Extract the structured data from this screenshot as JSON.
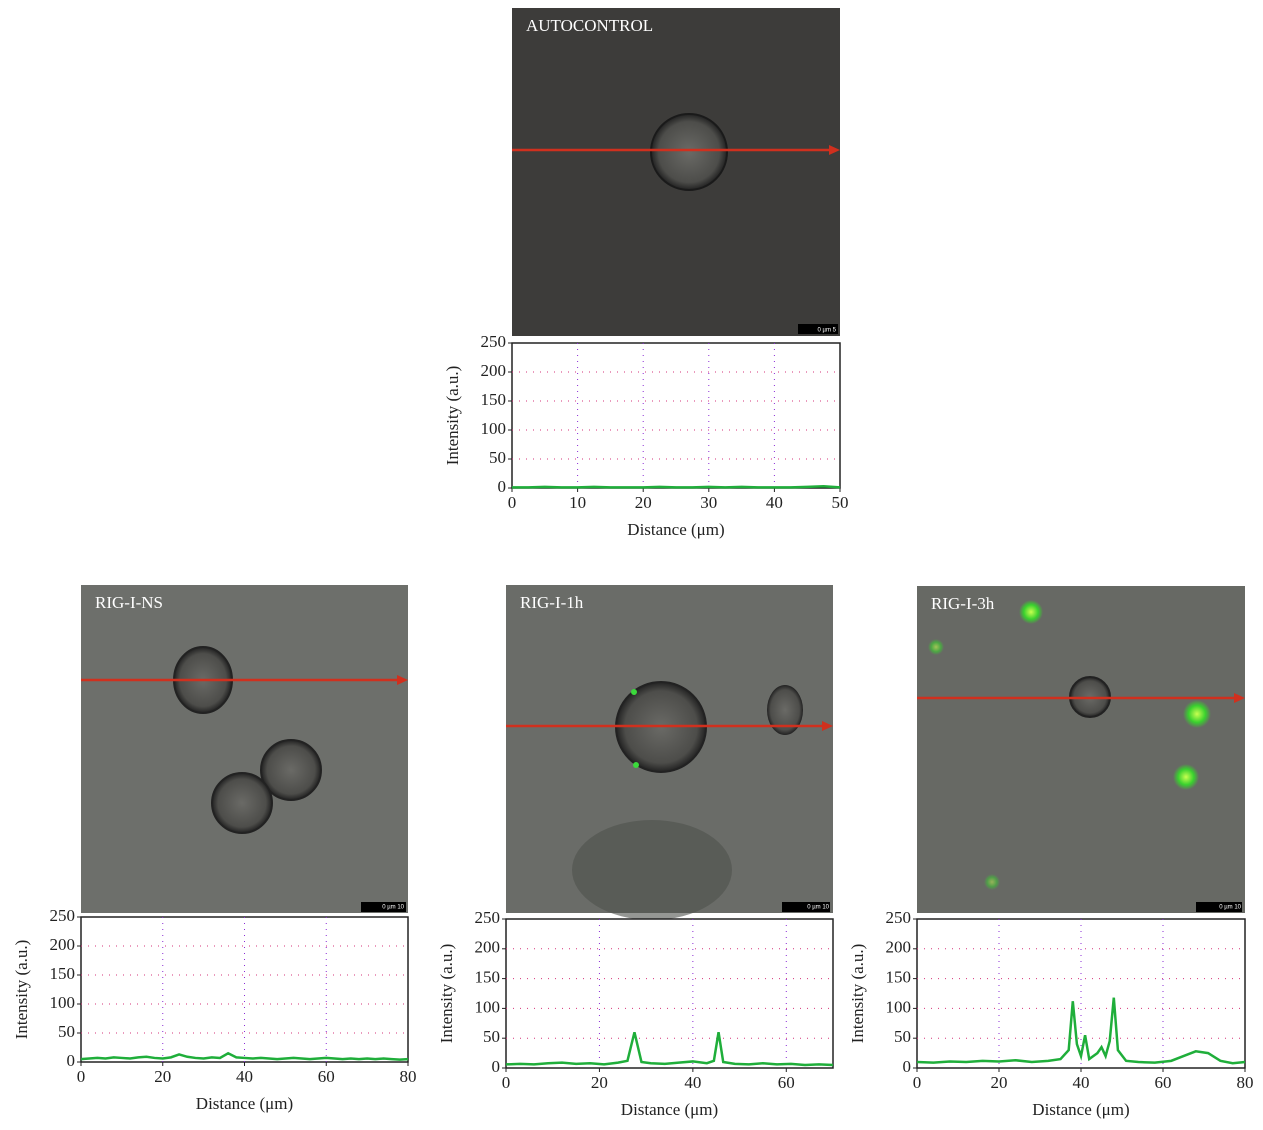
{
  "chart_data": [
    {
      "type": "line",
      "title": "AUTOCONTROL",
      "scale_bar": "0  µm  5",
      "xlabel": "Distance (μm)",
      "ylabel": "Intensity (a.u.)",
      "x": [
        0,
        2.5,
        5,
        7.5,
        10,
        12.5,
        15,
        17.5,
        20,
        22.5,
        25,
        27.5,
        30,
        32.5,
        35,
        37.5,
        40,
        42.5,
        45,
        47.5,
        50
      ],
      "values": [
        1,
        1,
        2,
        1,
        1,
        2,
        1,
        1,
        1,
        2,
        1,
        1,
        2,
        1,
        2,
        1,
        1,
        1,
        2,
        3,
        1
      ],
      "color": "#1fae3a",
      "xlim": [
        0,
        50
      ],
      "ylim": [
        0,
        250
      ],
      "xticks": [
        0,
        10,
        20,
        30,
        40,
        50
      ],
      "yticks": [
        0,
        50,
        100,
        150,
        200,
        250
      ],
      "grid": true
    },
    {
      "type": "line",
      "title": "RIG-I-NS",
      "scale_bar": "0  µm  10",
      "xlabel": "Distance (μm)",
      "ylabel": "Intensity (a.u.)",
      "x": [
        0,
        2,
        4,
        6,
        8,
        10,
        12,
        14,
        16,
        18,
        20,
        22,
        24,
        26,
        28,
        30,
        32,
        34,
        36,
        38,
        40,
        42,
        44,
        46,
        48,
        50,
        52,
        54,
        56,
        58,
        60,
        62,
        64,
        66,
        68,
        70,
        72,
        74,
        76,
        78,
        80
      ],
      "values": [
        5,
        6,
        7,
        6,
        8,
        7,
        6,
        8,
        9,
        7,
        6,
        8,
        13,
        9,
        7,
        6,
        8,
        7,
        15,
        8,
        7,
        6,
        7,
        6,
        5,
        6,
        7,
        6,
        5,
        6,
        7,
        6,
        5,
        6,
        5,
        6,
        5,
        6,
        5,
        4,
        5
      ],
      "color": "#1fae3a",
      "xlim": [
        0,
        80
      ],
      "ylim": [
        0,
        250
      ],
      "xticks": [
        0,
        20,
        40,
        60,
        80
      ],
      "yticks": [
        0,
        50,
        100,
        150,
        200,
        250
      ],
      "grid": true
    },
    {
      "type": "line",
      "title": "RIG-I-1h",
      "scale_bar": "0  µm  10",
      "xlabel": "Distance (μm)",
      "ylabel": "Intensity (a.u.)",
      "x": [
        0,
        3,
        6,
        9,
        12,
        15,
        18,
        21,
        24,
        26,
        27.5,
        29,
        31,
        34,
        37,
        40,
        43,
        44.5,
        45.5,
        46.5,
        49,
        52,
        55,
        58,
        61,
        64,
        67,
        70
      ],
      "values": [
        6,
        7,
        6,
        8,
        9,
        7,
        8,
        6,
        9,
        12,
        60,
        10,
        8,
        7,
        9,
        11,
        8,
        12,
        60,
        10,
        7,
        6,
        8,
        6,
        7,
        5,
        6,
        5
      ],
      "color": "#1fae3a",
      "xlim": [
        0,
        70
      ],
      "ylim": [
        0,
        250
      ],
      "xticks": [
        0,
        20,
        40,
        60
      ],
      "yticks": [
        0,
        50,
        100,
        150,
        200,
        250
      ],
      "grid": true
    },
    {
      "type": "line",
      "title": "RIG-I-3h",
      "scale_bar": "0  µm  10",
      "xlabel": "Distance (μm)",
      "ylabel": "Intensity (a.u.)",
      "x": [
        0,
        4,
        8,
        12,
        16,
        20,
        24,
        28,
        32,
        35,
        37,
        38,
        39,
        40,
        41,
        42,
        44,
        45,
        46,
        47,
        48,
        49,
        51,
        54,
        58,
        62,
        65,
        68,
        71,
        74,
        77,
        80
      ],
      "values": [
        10,
        9,
        11,
        10,
        12,
        11,
        13,
        10,
        12,
        15,
        30,
        112,
        40,
        20,
        55,
        15,
        25,
        35,
        20,
        45,
        118,
        30,
        12,
        10,
        9,
        12,
        20,
        28,
        25,
        12,
        8,
        10
      ],
      "color": "#1fae3a",
      "xlim": [
        0,
        80
      ],
      "ylim": [
        0,
        250
      ],
      "xticks": [
        0,
        20,
        40,
        60,
        80
      ],
      "yticks": [
        0,
        50,
        100,
        150,
        200,
        250
      ],
      "grid": true
    }
  ]
}
